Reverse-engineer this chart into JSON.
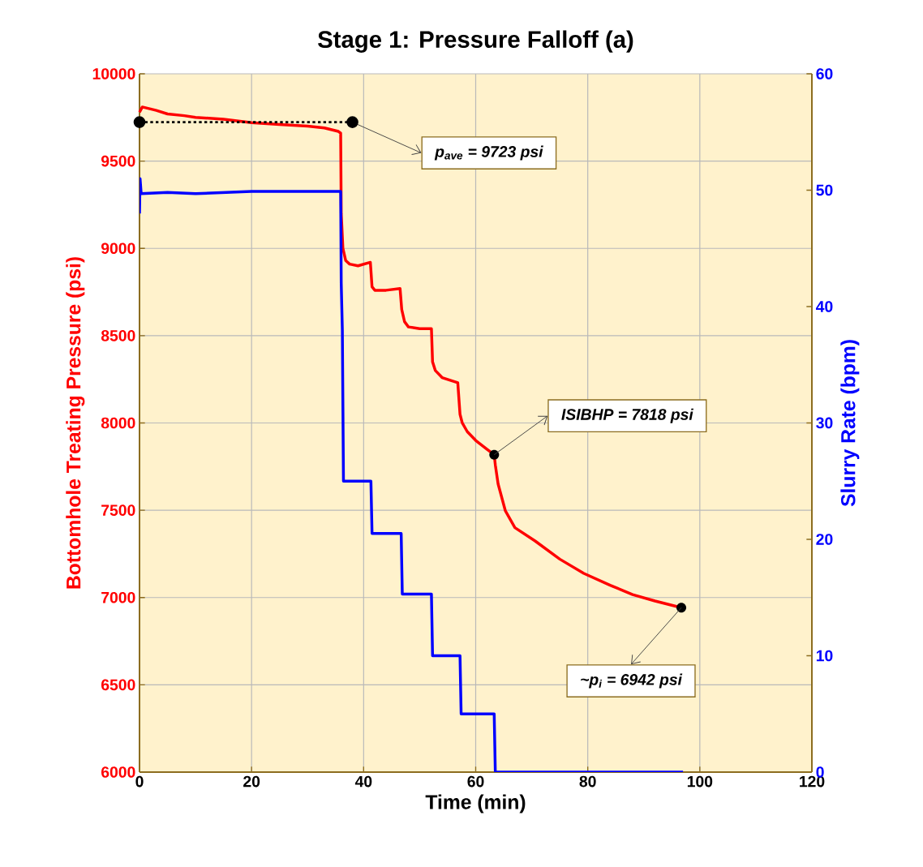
{
  "chart_data": {
    "type": "line",
    "title": "Stage 1: Pressure Falloff (a)",
    "xlabel": "Time (min)",
    "ylabel": "Bottomhole Treating Pressure (psi)",
    "y2label": "Slurry Rate (bpm)",
    "xlim": [
      0,
      120
    ],
    "xticks": [
      0,
      20,
      40,
      60,
      80,
      100,
      120
    ],
    "ylim": [
      6000,
      10000
    ],
    "yticks": [
      6000,
      6500,
      7000,
      7500,
      8000,
      8500,
      9000,
      9500,
      10000
    ],
    "y2lim": [
      0,
      60
    ],
    "y2ticks": [
      0,
      10,
      20,
      30,
      40,
      50,
      60
    ],
    "grid": true,
    "series": [
      {
        "color": "#ff0000",
        "x": [
          0,
          0.5,
          3,
          5,
          8,
          10,
          15,
          20,
          25,
          30,
          33,
          35.5,
          35.9,
          36.0,
          36.3,
          36.8,
          37.5,
          39,
          41.2,
          41.5,
          42,
          44,
          46.5,
          46.8,
          47.3,
          48,
          50,
          52.1,
          52.3,
          52.8,
          54,
          56.8,
          57.2,
          57.6,
          58.5,
          60,
          62,
          63.3,
          63.5,
          64,
          65.3,
          67,
          70.6,
          75,
          79.3,
          84,
          88,
          92,
          96.7
        ],
        "values": [
          9780,
          9810,
          9790,
          9770,
          9760,
          9750,
          9740,
          9720,
          9710,
          9700,
          9690,
          9670,
          9660,
          9200,
          9000,
          8930,
          8910,
          8900,
          8920,
          8780,
          8760,
          8760,
          8770,
          8650,
          8580,
          8550,
          8540,
          8540,
          8350,
          8300,
          8260,
          8230,
          8050,
          8000,
          7950,
          7900,
          7850,
          7818,
          7760,
          7650,
          7496,
          7400,
          7324,
          7220,
          7138,
          7070,
          7017,
          6980,
          6942
        ]
      },
      {
        "color": "#0000ff",
        "axis": "y2",
        "x": [
          0,
          0.1,
          0.3,
          5,
          10,
          20,
          30,
          35.7,
          35.9,
          36.0,
          36.2,
          36.4,
          41.3,
          41.5,
          46.7,
          46.9,
          52.1,
          52.3,
          57.2,
          57.4,
          63.3,
          63.5,
          97
        ],
        "values": [
          48,
          51,
          49.7,
          49.8,
          49.7,
          49.9,
          49.9,
          49.9,
          49.9,
          42,
          38,
          25,
          25,
          20.5,
          20.5,
          15.3,
          15.3,
          10,
          10,
          5,
          5,
          0,
          0
        ]
      },
      {
        "type": "line",
        "color": "#000000",
        "line_style": "dotted",
        "marker": "circle",
        "x": [
          0,
          38
        ],
        "values": [
          9723,
          9723
        ]
      }
    ],
    "annotations": [
      {
        "text": "p$_{ave}$ = 9723 psi",
        "x": 38,
        "y": 9723
      },
      {
        "text": "ISIBHP = 7818 psi",
        "x": 63.3,
        "y": 7818
      },
      {
        "text": "~p$_{i}$ = 6942 psi",
        "x": 96.7,
        "y": 6942
      }
    ]
  }
}
